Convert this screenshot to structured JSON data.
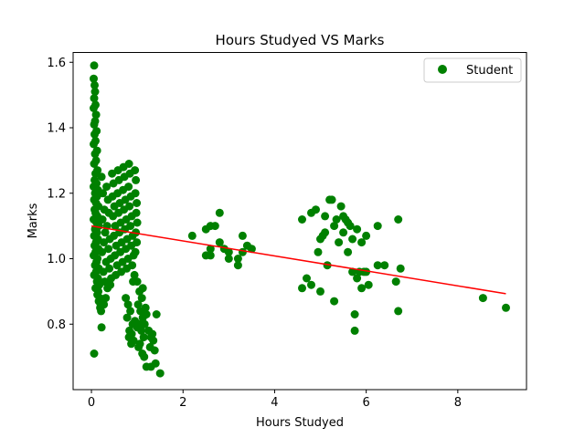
{
  "chart_data": {
    "type": "scatter",
    "title": "Hours Studyed VS Marks",
    "xlabel": "Hours Studyed",
    "ylabel": "Marks",
    "xlim": [
      -0.4,
      9.5
    ],
    "ylim": [
      0.6,
      1.63
    ],
    "xticks": [
      0,
      2,
      4,
      6,
      8
    ],
    "yticks": [
      0.8,
      1.0,
      1.2,
      1.4,
      1.6
    ],
    "xtick_labels": [
      "0",
      "2",
      "4",
      "6",
      "8"
    ],
    "ytick_labels": [
      "0.8",
      "1.0",
      "1.2",
      "1.4",
      "1.6"
    ],
    "grid": false,
    "legend": {
      "position": "top-right",
      "entries": [
        "Student"
      ]
    },
    "colors": {
      "points": "#008000",
      "fit_line": "#ff0000"
    },
    "series": [
      {
        "name": "Student",
        "kind": "scatter",
        "points": [
          [
            0.06,
            1.59
          ],
          [
            0.05,
            1.55
          ],
          [
            0.07,
            1.53
          ],
          [
            0.08,
            1.51
          ],
          [
            0.06,
            1.49
          ],
          [
            0.09,
            1.47
          ],
          [
            0.05,
            1.46
          ],
          [
            0.1,
            1.44
          ],
          [
            0.08,
            1.42
          ],
          [
            0.06,
            1.41
          ],
          [
            0.11,
            1.39
          ],
          [
            0.07,
            1.38
          ],
          [
            0.09,
            1.36
          ],
          [
            0.05,
            1.35
          ],
          [
            0.12,
            1.33
          ],
          [
            0.08,
            1.32
          ],
          [
            0.1,
            1.3
          ],
          [
            0.06,
            1.29
          ],
          [
            0.13,
            1.27
          ],
          [
            0.09,
            1.26
          ],
          [
            0.07,
            1.24
          ],
          [
            0.11,
            1.23
          ],
          [
            0.05,
            1.22
          ],
          [
            0.14,
            1.21
          ],
          [
            0.08,
            1.2
          ],
          [
            0.12,
            1.19
          ],
          [
            0.06,
            1.18
          ],
          [
            0.1,
            1.17
          ],
          [
            0.15,
            1.16
          ],
          [
            0.07,
            1.15
          ],
          [
            0.09,
            1.14
          ],
          [
            0.13,
            1.13
          ],
          [
            0.05,
            1.12
          ],
          [
            0.11,
            1.11
          ],
          [
            0.16,
            1.1
          ],
          [
            0.08,
            1.09
          ],
          [
            0.12,
            1.08
          ],
          [
            0.06,
            1.07
          ],
          [
            0.14,
            1.06
          ],
          [
            0.1,
            1.05
          ],
          [
            0.07,
            1.04
          ],
          [
            0.15,
            1.03
          ],
          [
            0.09,
            1.02
          ],
          [
            0.05,
            1.01
          ],
          [
            0.13,
            1.0
          ],
          [
            0.11,
            0.99
          ],
          [
            0.08,
            0.98
          ],
          [
            0.16,
            0.97
          ],
          [
            0.1,
            0.96
          ],
          [
            0.06,
            0.95
          ],
          [
            0.14,
            0.94
          ],
          [
            0.12,
            0.93
          ],
          [
            0.17,
            0.92
          ],
          [
            0.09,
            0.91
          ],
          [
            0.15,
            0.9
          ],
          [
            0.13,
            0.89
          ],
          [
            0.18,
            0.88
          ],
          [
            0.16,
            0.87
          ],
          [
            0.2,
            0.86
          ],
          [
            0.19,
            0.85
          ],
          [
            0.21,
            0.84
          ],
          [
            0.22,
            0.79
          ],
          [
            0.06,
            0.71
          ],
          [
            0.22,
            1.25
          ],
          [
            0.25,
            1.2
          ],
          [
            0.28,
            1.15
          ],
          [
            0.24,
            1.12
          ],
          [
            0.3,
            1.08
          ],
          [
            0.27,
            1.05
          ],
          [
            0.23,
            1.02
          ],
          [
            0.32,
            0.99
          ],
          [
            0.26,
            0.96
          ],
          [
            0.29,
            0.93
          ],
          [
            0.35,
            0.91
          ],
          [
            0.31,
            0.88
          ],
          [
            0.27,
            0.86
          ],
          [
            0.33,
            1.22
          ],
          [
            0.36,
            1.18
          ],
          [
            0.38,
            1.14
          ],
          [
            0.34,
            1.1
          ],
          [
            0.4,
            1.06
          ],
          [
            0.37,
            1.03
          ],
          [
            0.42,
            1.0
          ],
          [
            0.39,
            0.97
          ],
          [
            0.43,
            0.94
          ],
          [
            0.41,
            0.92
          ],
          [
            0.45,
            1.26
          ],
          [
            0.48,
            1.23
          ],
          [
            0.46,
            1.19
          ],
          [
            0.5,
            1.16
          ],
          [
            0.47,
            1.13
          ],
          [
            0.52,
            1.1
          ],
          [
            0.49,
            1.07
          ],
          [
            0.54,
            1.04
          ],
          [
            0.51,
            1.01
          ],
          [
            0.56,
            0.98
          ],
          [
            0.53,
            0.95
          ],
          [
            0.58,
            1.27
          ],
          [
            0.6,
            1.24
          ],
          [
            0.57,
            1.2
          ],
          [
            0.62,
            1.17
          ],
          [
            0.59,
            1.14
          ],
          [
            0.64,
            1.11
          ],
          [
            0.61,
            1.08
          ],
          [
            0.66,
            1.05
          ],
          [
            0.63,
            1.02
          ],
          [
            0.68,
            0.99
          ],
          [
            0.65,
            0.96
          ],
          [
            0.7,
            1.28
          ],
          [
            0.72,
            1.25
          ],
          [
            0.69,
            1.21
          ],
          [
            0.74,
            1.18
          ],
          [
            0.71,
            1.15
          ],
          [
            0.76,
            1.12
          ],
          [
            0.73,
            1.09
          ],
          [
            0.78,
            1.06
          ],
          [
            0.75,
            1.03
          ],
          [
            0.8,
            1.0
          ],
          [
            0.77,
            0.97
          ],
          [
            0.82,
            1.29
          ],
          [
            0.84,
            1.26
          ],
          [
            0.81,
            1.22
          ],
          [
            0.86,
            1.19
          ],
          [
            0.83,
            1.16
          ],
          [
            0.88,
            1.13
          ],
          [
            0.85,
            1.1
          ],
          [
            0.9,
            1.07
          ],
          [
            0.87,
            1.04
          ],
          [
            0.92,
            1.01
          ],
          [
            0.89,
            0.98
          ],
          [
            0.94,
            0.95
          ],
          [
            0.91,
            0.93
          ],
          [
            0.95,
            1.27
          ],
          [
            0.97,
            1.24
          ],
          [
            0.96,
            1.2
          ],
          [
            0.99,
            1.17
          ],
          [
            0.98,
            1.14
          ],
          [
            1.0,
            1.11
          ],
          [
            0.97,
            1.08
          ],
          [
            0.99,
            1.05
          ],
          [
            0.96,
            1.02
          ],
          [
            0.75,
            0.88
          ],
          [
            0.8,
            0.86
          ],
          [
            0.85,
            0.84
          ],
          [
            0.78,
            0.82
          ],
          [
            0.9,
            0.8
          ],
          [
            0.83,
            0.78
          ],
          [
            0.95,
            0.81
          ],
          [
            0.88,
            0.77
          ],
          [
            1.0,
            0.79
          ],
          [
            0.92,
            0.75
          ],
          [
            0.82,
            0.76
          ],
          [
            0.87,
            0.74
          ],
          [
            1.0,
            0.93
          ],
          [
            1.05,
            0.9
          ],
          [
            1.1,
            0.88
          ],
          [
            1.02,
            0.86
          ],
          [
            1.07,
            0.84
          ],
          [
            1.12,
            0.82
          ],
          [
            1.04,
            0.8
          ],
          [
            1.09,
            0.78
          ],
          [
            1.14,
            0.76
          ],
          [
            1.06,
            0.74
          ],
          [
            1.11,
            0.71
          ],
          [
            1.16,
            0.8
          ],
          [
            1.03,
            0.73
          ],
          [
            1.12,
            0.91
          ],
          [
            1.18,
            0.85
          ],
          [
            1.2,
            0.83
          ],
          [
            1.25,
            0.78
          ],
          [
            1.3,
            0.76
          ],
          [
            1.35,
            0.75
          ],
          [
            1.28,
            0.73
          ],
          [
            1.38,
            0.72
          ],
          [
            1.33,
            0.77
          ],
          [
            1.15,
            0.7
          ],
          [
            1.2,
            0.67
          ],
          [
            1.3,
            0.67
          ],
          [
            1.4,
            0.68
          ],
          [
            1.5,
            0.65
          ],
          [
            1.42,
            0.83
          ],
          [
            2.2,
            1.07
          ],
          [
            2.5,
            1.09
          ],
          [
            2.6,
            1.1
          ],
          [
            2.7,
            1.1
          ],
          [
            2.8,
            1.14
          ],
          [
            2.5,
            1.01
          ],
          [
            2.6,
            1.01
          ],
          [
            2.8,
            1.05
          ],
          [
            2.9,
            1.03
          ],
          [
            3.0,
            1.0
          ],
          [
            3.0,
            1.02
          ],
          [
            2.6,
            1.03
          ],
          [
            3.2,
            0.98
          ],
          [
            3.2,
            1.0
          ],
          [
            3.3,
            1.02
          ],
          [
            3.3,
            1.07
          ],
          [
            3.4,
            1.04
          ],
          [
            3.5,
            1.03
          ],
          [
            4.6,
            1.12
          ],
          [
            4.6,
            0.91
          ],
          [
            4.7,
            0.94
          ],
          [
            4.8,
            1.14
          ],
          [
            4.8,
            0.92
          ],
          [
            4.9,
            1.15
          ],
          [
            4.95,
            1.02
          ],
          [
            5.0,
            1.06
          ],
          [
            5.0,
            0.9
          ],
          [
            5.05,
            1.07
          ],
          [
            5.1,
            1.08
          ],
          [
            5.1,
            1.13
          ],
          [
            5.15,
            0.98
          ],
          [
            5.2,
            1.18
          ],
          [
            5.25,
            1.18
          ],
          [
            5.3,
            1.1
          ],
          [
            5.3,
            0.87
          ],
          [
            5.35,
            1.12
          ],
          [
            5.4,
            1.05
          ],
          [
            5.45,
            1.16
          ],
          [
            5.5,
            1.13
          ],
          [
            5.5,
            1.08
          ],
          [
            5.55,
            1.12
          ],
          [
            5.6,
            1.02
          ],
          [
            5.6,
            1.11
          ],
          [
            5.65,
            1.1
          ],
          [
            5.7,
            1.06
          ],
          [
            5.7,
            0.96
          ],
          [
            5.75,
            0.83
          ],
          [
            5.75,
            0.78
          ],
          [
            5.8,
            1.09
          ],
          [
            5.8,
            0.94
          ],
          [
            5.85,
            0.96
          ],
          [
            5.9,
            1.05
          ],
          [
            5.9,
            0.91
          ],
          [
            5.95,
            0.96
          ],
          [
            6.0,
            1.07
          ],
          [
            6.0,
            0.96
          ],
          [
            6.05,
            0.92
          ],
          [
            6.25,
            1.1
          ],
          [
            6.25,
            0.98
          ],
          [
            6.4,
            0.98
          ],
          [
            6.65,
            0.93
          ],
          [
            6.7,
            1.12
          ],
          [
            6.7,
            0.84
          ],
          [
            6.75,
            0.97
          ],
          [
            8.55,
            0.88
          ],
          [
            9.05,
            0.85
          ]
        ]
      }
    ],
    "fit_line": {
      "x": [
        0.0,
        9.05
      ],
      "y": [
        1.1,
        0.893
      ]
    }
  }
}
